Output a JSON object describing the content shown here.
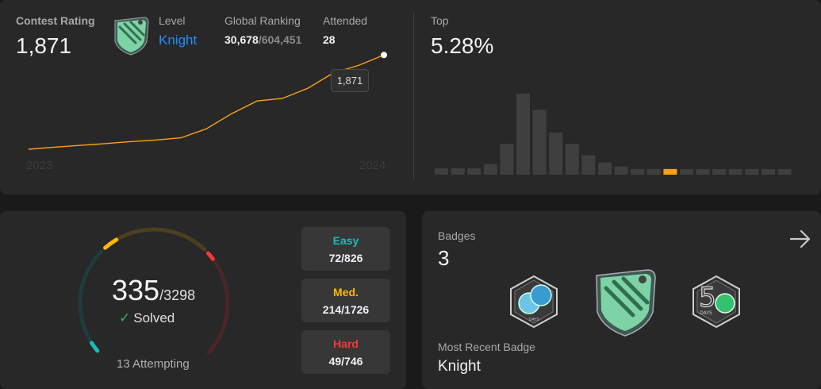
{
  "rating": {
    "label": "Contest Rating",
    "value": "1,871",
    "level_label": "Level",
    "level_value": "Knight",
    "ranking_label": "Global Ranking",
    "ranking_value": "30,678",
    "ranking_total": "/604,451",
    "attended_label": "Attended",
    "attended_value": "28",
    "tooltip": "1,871",
    "year_start": "2023",
    "year_end": "2024",
    "line_color": "#ffa116"
  },
  "top": {
    "label": "Top",
    "value": "5.28%"
  },
  "chart_data": [
    {
      "type": "line",
      "x": [
        "2023-01",
        "2023-02",
        "2023-03",
        "2023-04",
        "2023-05",
        "2023-06",
        "2023-07",
        "2023-08",
        "2023-09",
        "2023-10",
        "2023-11",
        "2023-12",
        "2024-01",
        "2024-02",
        "2024-03"
      ],
      "values": [
        1500,
        1508,
        1515,
        1522,
        1530,
        1536,
        1545,
        1580,
        1640,
        1690,
        1700,
        1740,
        1800,
        1830,
        1871
      ],
      "ylim": [
        1400,
        1900
      ],
      "series": [
        {
          "values": [
            1500,
            1508,
            1515,
            1522,
            1530,
            1536,
            1545,
            1580,
            1640,
            1690,
            1700,
            1740,
            1800,
            1830,
            1871
          ]
        }
      ]
    },
    {
      "type": "bar",
      "values": [
        8,
        8,
        8,
        13,
        38,
        100,
        80,
        52,
        38,
        24,
        15,
        10,
        7,
        7,
        7,
        7,
        7,
        7,
        7,
        7,
        7,
        7
      ],
      "highlight_index": 14,
      "bar_color": "#3f3f3f",
      "highlight_color": "#ffa116"
    }
  ],
  "solved": {
    "solved": "335",
    "total": "/3298",
    "solved_label": "Solved",
    "attempting": "13 Attempting",
    "easy_fraction": 0.087,
    "medium_fraction": 0.124,
    "hard_fraction": 0.066
  },
  "difficulty": {
    "easy": {
      "label": "Easy",
      "value": "72/826",
      "color": "#1cbaba"
    },
    "medium": {
      "label": "Med.",
      "value": "214/1726",
      "color": "#ffb700"
    },
    "hard": {
      "label": "Hard",
      "value": "49/746",
      "color": "#f63737"
    }
  },
  "badges": {
    "label": "Badges",
    "count": "3",
    "recent_label": "Most Recent Badge",
    "recent_value": "Knight",
    "badge_small_text": "DAYS",
    "badge_fifty_text": "DAYS",
    "badge_fifty_digit": "5"
  }
}
